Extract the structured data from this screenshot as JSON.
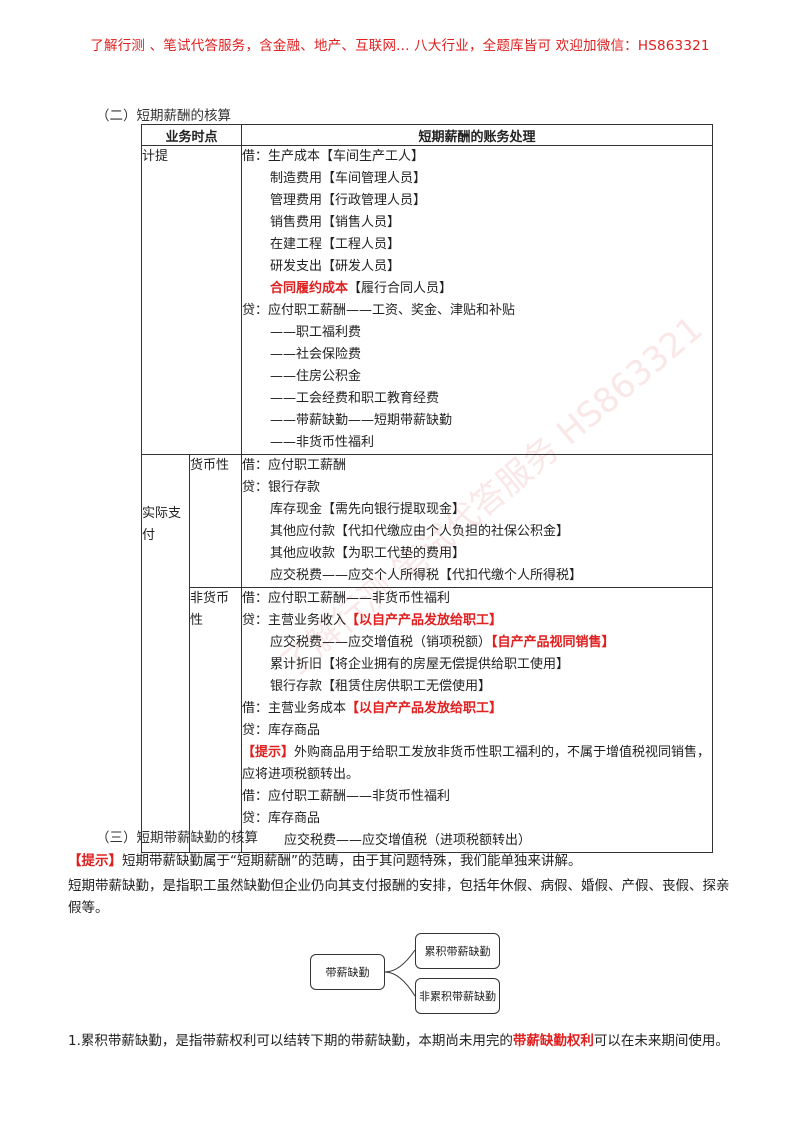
{
  "banner": "了解行测 、笔试代答服务，含金融、地产、互联网... 八大行业，全题库皆可 欢迎加微信：HS863321",
  "section2_title": "（二）短期薪酬的核算",
  "table": {
    "header_time": "业务时点",
    "header_treatment": "短期薪酬的账务处理",
    "accrual": {
      "label": "计提",
      "lines": [
        "借：生产成本【车间生产工人】",
        "制造费用【车间管理人员】",
        "管理费用【行政管理人员】",
        "销售费用【销售人员】",
        "在建工程【工程人员】",
        "研发支出【研发人员】"
      ],
      "contract_red": "合同履约成本",
      "contract_rest": "【履行合同人员】",
      "credit_lines": [
        "贷：应付职工薪酬——工资、奖金、津贴和补贴",
        "——职工福利费",
        "——社会保险费",
        "——住房公积金",
        "——工会经费和职工教育经费",
        "——带薪缺勤——短期带薪缺勤",
        "——非货币性福利"
      ]
    },
    "payment": {
      "label": "实际支付",
      "monetary": {
        "label": "货币性",
        "lines": [
          "借：应付职工薪酬",
          "贷：银行存款",
          "库存现金【需先向银行提取现金】",
          "其他应付款【代扣代缴应由个人负担的社保公积金】",
          "其他应收款【为职工代垫的费用】",
          "应交税费——应交个人所得税【代扣代缴个人所得税】"
        ]
      },
      "nonmonetary": {
        "label": "非货币性",
        "l1": "借：应付职工薪酬——非货币性福利",
        "l2_plain": "贷：主营业务收入",
        "l2_red": "【以自产产品发放给职工】",
        "l3_plain": "应交税费——应交增值税（销项税额）",
        "l3_red": "【自产产品视同销售】",
        "l4": "累计折旧【将企业拥有的房屋无偿提供给职工使用】",
        "l5": "银行存款【租赁住房供职工无偿使用】",
        "l6_plain": "借：主营业务成本",
        "l6_red": "【以自产产品发放给职工】",
        "l7": "贷：库存商品",
        "tip_red": "【提示】",
        "tip_text": "外购商品用于给职工发放非货币性职工福利的，不属于增值税视同销售，应将进项税额转出。",
        "l9": "借：应付职工薪酬——非货币性福利",
        "l10": "贷：库存商品",
        "l11": "应交税费——应交增值税（进项税额转出）"
      }
    }
  },
  "section3_title": "（三）短期带薪缺勤的核算",
  "tip2_red": "【提示】",
  "tip2_text": "短期带薪缺勤属于“短期薪酬”的范畴，由于其问题特殊，我们能单独来讲解。",
  "definition": "短期带薪缺勤，是指职工虽然缺勤但企业仍向其支付报酬的安排，包括年休假、病假、婚假、产假、丧假、探亲假等。",
  "diagram": {
    "root": "带薪缺勤",
    "child1": "累积带薪缺勤",
    "child2": "非累积带薪缺勤"
  },
  "point1_plain": "1.累积带薪缺勤，是指带薪权利可以结转下期的带薪缺勤，本期尚未用完的",
  "point1_red": "带薪缺勤权利",
  "point1_tail": "可以在未来期间使用。"
}
